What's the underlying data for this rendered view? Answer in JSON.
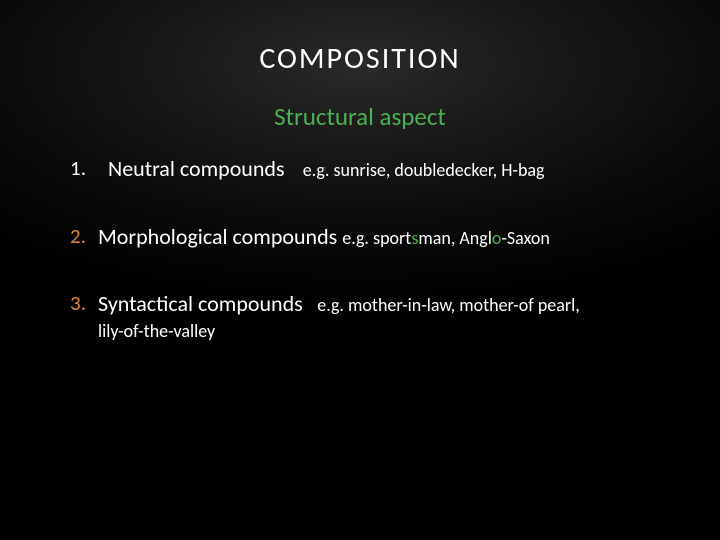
{
  "colors": {
    "text_primary": "#ffffff",
    "accent_green": "#4caf50",
    "accent_orange": "#d9843b",
    "background": "#000000"
  },
  "typography": {
    "title_fontsize": 30,
    "subtitle_fontsize": 25,
    "body_fontsize": 22,
    "example_fontsize": 18,
    "font_family": "Calibri"
  },
  "title": "COMPOSITION",
  "subtitle": "Structural aspect",
  "items": [
    {
      "num": "1.",
      "num_color": "#ffffff",
      "main": "Neutral compounds",
      "example": "e.g. sunrise, doubledecker, H-bag"
    },
    {
      "num": "2.",
      "num_color": "#d9843b",
      "main": "Morphological compounds ",
      "example_prefix": "e.g. sport",
      "example_hl1": "s",
      "example_mid": "man, Angl",
      "example_hl2": "o",
      "example_suffix": "-Saxon"
    },
    {
      "num": "3.",
      "num_color": "#d9843b",
      "main": "Syntactical compounds",
      "example": "e.g. mother-in-law, mother-of pearl,",
      "example_line2": "lily-of-the-valley"
    }
  ]
}
